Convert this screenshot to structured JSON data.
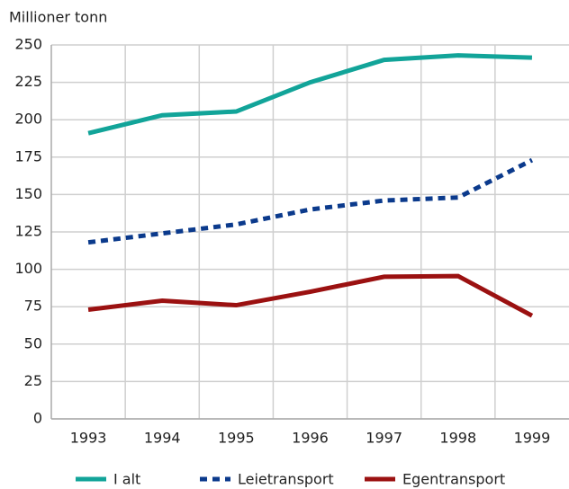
{
  "chart_data": {
    "type": "line",
    "ylabel": "Millioner tonn",
    "categories": [
      "1993",
      "1994",
      "1995",
      "1996",
      "1997",
      "1998",
      "1999"
    ],
    "series": [
      {
        "name": "I alt",
        "color": "#12a499",
        "dash": "solid",
        "values": [
          191,
          203,
          205.5,
          225,
          240,
          243,
          241.5
        ]
      },
      {
        "name": "Leietransport",
        "color": "#0b3a8c",
        "dash": "dashed",
        "values": [
          118,
          124,
          130,
          140,
          146,
          148,
          173
        ]
      },
      {
        "name": "Egentransport",
        "color": "#9b1111",
        "dash": "solid",
        "values": [
          73,
          79,
          76,
          85,
          95,
          95.5,
          69
        ]
      }
    ],
    "ylim": [
      0,
      250
    ],
    "yticks": [
      0,
      25,
      50,
      75,
      100,
      125,
      150,
      175,
      200,
      225,
      250
    ],
    "grid": true
  }
}
